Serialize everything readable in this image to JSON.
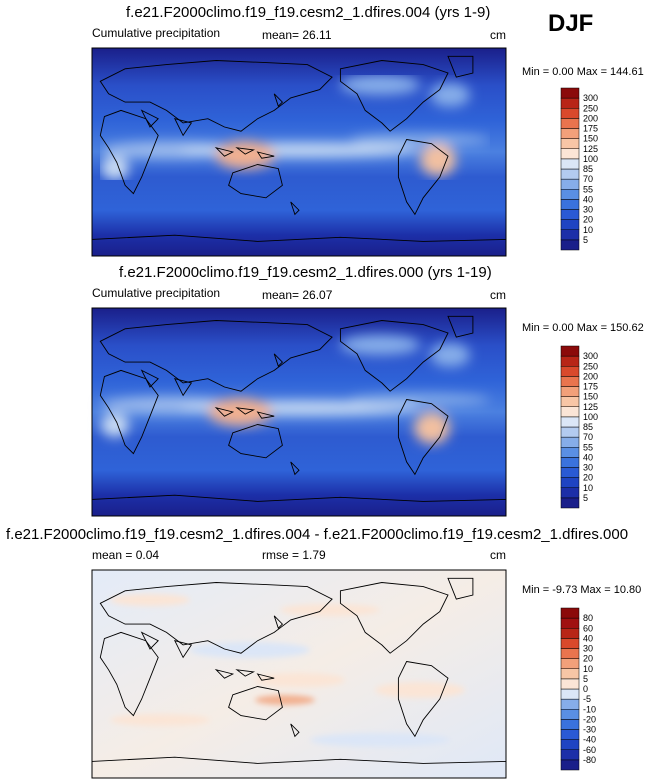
{
  "season": "DJF",
  "panels": [
    {
      "title": "f.e21.F2000climo.f19_f19.cesm2_1.dfires.004 (yrs 1-9)",
      "left_label": "Cumulative precipitation",
      "mid_label": "mean=  26.11",
      "units": "cm",
      "minmax": "Min =   0.00 Max = 144.61"
    },
    {
      "title": "f.e21.F2000climo.f19_f19.cesm2_1.dfires.000 (yrs 1-19)",
      "left_label": "Cumulative precipitation",
      "mid_label": "mean=  26.07",
      "units": "cm",
      "minmax": "Min =   0.00 Max = 150.62"
    },
    {
      "title": "f.e21.F2000climo.f19_f19.cesm2_1.dfires.004 - f.e21.F2000climo.f19_f19.cesm2_1.dfires.000",
      "left_label": "mean =   0.04",
      "mid_label": "rmse =   1.79",
      "units": "cm",
      "minmax": "Min =  -9.73 Max =  10.80"
    }
  ],
  "chart_data": [
    {
      "type": "heatmap",
      "title": "f.e21.F2000climo.f19_f19.cesm2_1.dfires.004 (yrs 1-9)",
      "variable": "Cumulative precipitation",
      "units": "cm",
      "mean": 26.11,
      "min": 0.0,
      "max": 144.61,
      "colorbar_levels": [
        5,
        10,
        20,
        30,
        40,
        55,
        70,
        85,
        100,
        125,
        150,
        175,
        200,
        250,
        300
      ],
      "colorbar_colors": [
        "#1a1f8a",
        "#1c2fa8",
        "#1f44c2",
        "#2a5ad4",
        "#3a72dd",
        "#5a8fe4",
        "#86ade9",
        "#b3cbf0",
        "#dbe6f7",
        "#fbe5d6",
        "#f8c6a6",
        "#f2a07a",
        "#e9744e",
        "#d9492c",
        "#b82517",
        "#8b0a0a"
      ]
    },
    {
      "type": "heatmap",
      "title": "f.e21.F2000climo.f19_f19.cesm2_1.dfires.000 (yrs 1-19)",
      "variable": "Cumulative precipitation",
      "units": "cm",
      "mean": 26.07,
      "min": 0.0,
      "max": 150.62,
      "colorbar_levels": [
        5,
        10,
        20,
        30,
        40,
        55,
        70,
        85,
        100,
        125,
        150,
        175,
        200,
        250,
        300
      ],
      "colorbar_colors": [
        "#1a1f8a",
        "#1c2fa8",
        "#1f44c2",
        "#2a5ad4",
        "#3a72dd",
        "#5a8fe4",
        "#86ade9",
        "#b3cbf0",
        "#dbe6f7",
        "#fbe5d6",
        "#f8c6a6",
        "#f2a07a",
        "#e9744e",
        "#d9492c",
        "#b82517",
        "#8b0a0a"
      ]
    },
    {
      "type": "heatmap",
      "title": "f.e21.F2000climo.f19_f19.cesm2_1.dfires.004 - f.e21.F2000climo.f19_f19.cesm2_1.dfires.000",
      "units": "cm",
      "mean": 0.04,
      "rmse": 1.79,
      "min": -9.73,
      "max": 10.8,
      "colorbar_levels": [
        -80,
        -60,
        -40,
        -30,
        -20,
        -10,
        -5,
        0,
        5,
        10,
        20,
        30,
        40,
        60,
        80
      ],
      "colorbar_colors": [
        "#1a1f8a",
        "#1c2fa8",
        "#1f44c2",
        "#2a5ad4",
        "#3a72dd",
        "#5a8fe4",
        "#86ade9",
        "#dbe6f7",
        "#fbe5d6",
        "#f8c6a6",
        "#f2a07a",
        "#e9744e",
        "#d9492c",
        "#b82517",
        "#a01010",
        "#8b0a0a"
      ]
    }
  ]
}
